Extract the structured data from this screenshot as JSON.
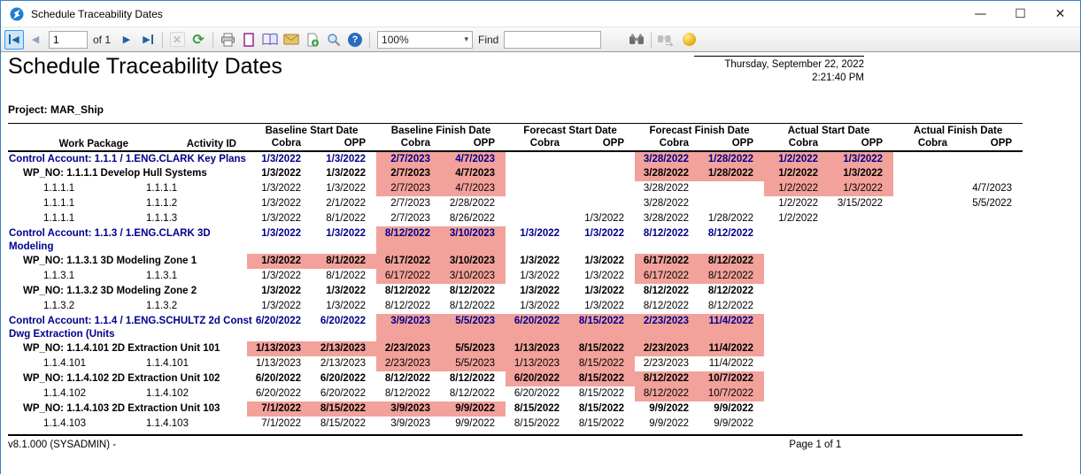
{
  "window": {
    "title": "Schedule Traceability Dates",
    "controls": {
      "minimize": "—",
      "maximize": "☐",
      "close": "✕"
    }
  },
  "toolbar": {
    "page_value": "1",
    "of_label": "of 1",
    "zoom_value": "100%",
    "find_label": "Find",
    "icons": [
      "first-page-icon",
      "prev-page-icon",
      "next-page-icon",
      "last-page-icon",
      "cancel-icon",
      "refresh-icon",
      "print-icon",
      "page-setup-icon",
      "page-layout-icon",
      "email-icon",
      "export-icon",
      "magnifier-icon",
      "help-icon",
      "binoculars-icon",
      "find-next-icon",
      "gold-ball-icon"
    ]
  },
  "report": {
    "title": "Schedule Traceability Dates",
    "date_line1": "Thursday, September 22, 2022",
    "date_line2": "2:21:40 PM",
    "project_label": "Project: MAR_Ship",
    "footer_left": "v8.1.000 (SYSADMIN) -",
    "footer_page": "Page 1 of 1"
  },
  "colors": {
    "highlight": "#f2a29b",
    "control_account_text": "#00008c",
    "window_border": "#3e7fc1"
  },
  "table": {
    "col1_header": "Work Package",
    "col2_header": "Activity ID",
    "groups": [
      "Baseline Start Date",
      "Baseline Finish Date",
      "Forecast Start Date",
      "Forecast Finish Date",
      "Actual Start Date",
      "Actual Finish Date"
    ],
    "sub_left": "Cobra",
    "sub_right": "OPP",
    "rows": [
      {
        "style": "ca",
        "wp": "Control Account: 1.1.1 / 1.ENG.CLARK Key Plans",
        "id": "",
        "dates": [
          "1/3/2022",
          "1/3/2022",
          "2/7/2023",
          "4/7/2023",
          "",
          "",
          "3/28/2022",
          "1/28/2022",
          "1/2/2022",
          "1/3/2022",
          "",
          ""
        ],
        "hl": [
          2,
          3,
          6,
          7,
          8,
          9
        ]
      },
      {
        "style": "wp",
        "wp": "WP_NO: 1.1.1.1 Develop Hull Systems",
        "id": "",
        "dates": [
          "1/3/2022",
          "1/3/2022",
          "2/7/2023",
          "4/7/2023",
          "",
          "",
          "3/28/2022",
          "1/28/2022",
          "1/2/2022",
          "1/3/2022",
          "",
          ""
        ],
        "hl": [
          2,
          3,
          6,
          7,
          8,
          9
        ]
      },
      {
        "style": "act",
        "wp": "1.1.1.1",
        "id": "1.1.1.1",
        "dates": [
          "1/3/2022",
          "1/3/2022",
          "2/7/2023",
          "4/7/2023",
          "",
          "",
          "3/28/2022",
          "",
          "1/2/2022",
          "1/3/2022",
          "",
          "4/7/2023"
        ],
        "hl": [
          2,
          3,
          8,
          9
        ]
      },
      {
        "style": "act",
        "wp": "1.1.1.1",
        "id": "1.1.1.2",
        "dates": [
          "1/3/2022",
          "2/1/2022",
          "2/7/2023",
          "2/28/2022",
          "",
          "",
          "3/28/2022",
          "",
          "1/2/2022",
          "3/15/2022",
          "",
          "5/5/2022"
        ],
        "hl": []
      },
      {
        "style": "act",
        "wp": "1.1.1.1",
        "id": "1.1.1.3",
        "dates": [
          "1/3/2022",
          "8/1/2022",
          "2/7/2023",
          "8/26/2022",
          "",
          "1/3/2022",
          "3/28/2022",
          "1/28/2022",
          "1/2/2022",
          "",
          "",
          ""
        ],
        "hl": []
      },
      {
        "style": "ca",
        "wp": "Control Account: 1.1.3 / 1.ENG.CLARK 3D Modeling",
        "id": "",
        "dates": [
          "1/3/2022",
          "1/3/2022",
          "8/12/2022",
          "3/10/2023",
          "1/3/2022",
          "1/3/2022",
          "8/12/2022",
          "8/12/2022",
          "",
          "",
          "",
          ""
        ],
        "hl": [
          2,
          3
        ]
      },
      {
        "style": "wp",
        "wp": "WP_NO: 1.1.3.1 3D Modeling Zone 1",
        "id": "",
        "dates": [
          "1/3/2022",
          "8/1/2022",
          "6/17/2022",
          "3/10/2023",
          "1/3/2022",
          "1/3/2022",
          "6/17/2022",
          "8/12/2022",
          "",
          "",
          "",
          ""
        ],
        "hl": [
          0,
          1,
          2,
          3,
          6,
          7
        ]
      },
      {
        "style": "act",
        "wp": "1.1.3.1",
        "id": "1.1.3.1",
        "dates": [
          "1/3/2022",
          "8/1/2022",
          "6/17/2022",
          "3/10/2023",
          "1/3/2022",
          "1/3/2022",
          "6/17/2022",
          "8/12/2022",
          "",
          "",
          "",
          ""
        ],
        "hl": [
          2,
          3,
          6,
          7
        ]
      },
      {
        "style": "wp",
        "wp": "WP_NO: 1.1.3.2 3D Modeling Zone 2",
        "id": "",
        "dates": [
          "1/3/2022",
          "1/3/2022",
          "8/12/2022",
          "8/12/2022",
          "1/3/2022",
          "1/3/2022",
          "8/12/2022",
          "8/12/2022",
          "",
          "",
          "",
          ""
        ],
        "hl": []
      },
      {
        "style": "act",
        "wp": "1.1.3.2",
        "id": "1.1.3.2",
        "dates": [
          "1/3/2022",
          "1/3/2022",
          "8/12/2022",
          "8/12/2022",
          "1/3/2022",
          "1/3/2022",
          "8/12/2022",
          "8/12/2022",
          "",
          "",
          "",
          ""
        ],
        "hl": []
      },
      {
        "style": "ca",
        "wp": "Control Account: 1.1.4 / 1.ENG.SCHULTZ 2d Const Dwg Extraction (Units",
        "id": "",
        "dates": [
          "6/20/2022",
          "6/20/2022",
          "3/9/2023",
          "5/5/2023",
          "6/20/2022",
          "8/15/2022",
          "2/23/2023",
          "11/4/2022",
          "",
          "",
          "",
          ""
        ],
        "hl": [
          2,
          3,
          4,
          5,
          6,
          7
        ]
      },
      {
        "style": "wp",
        "wp": "WP_NO: 1.1.4.101 2D Extraction Unit 101",
        "id": "",
        "dates": [
          "1/13/2023",
          "2/13/2023",
          "2/23/2023",
          "5/5/2023",
          "1/13/2023",
          "8/15/2022",
          "2/23/2023",
          "11/4/2022",
          "",
          "",
          "",
          ""
        ],
        "hl": [
          0,
          1,
          2,
          3,
          4,
          5,
          6,
          7
        ]
      },
      {
        "style": "act",
        "wp": "1.1.4.101",
        "id": "1.1.4.101",
        "dates": [
          "1/13/2023",
          "2/13/2023",
          "2/23/2023",
          "5/5/2023",
          "1/13/2023",
          "8/15/2022",
          "2/23/2023",
          "11/4/2022",
          "",
          "",
          "",
          ""
        ],
        "hl": [
          2,
          3,
          4,
          5
        ]
      },
      {
        "style": "wp",
        "wp": "WP_NO: 1.1.4.102 2D Extraction Unit 102",
        "id": "",
        "dates": [
          "6/20/2022",
          "6/20/2022",
          "8/12/2022",
          "8/12/2022",
          "6/20/2022",
          "8/15/2022",
          "8/12/2022",
          "10/7/2022",
          "",
          "",
          "",
          ""
        ],
        "hl": [
          4,
          5,
          6,
          7
        ]
      },
      {
        "style": "act",
        "wp": "1.1.4.102",
        "id": "1.1.4.102",
        "dates": [
          "6/20/2022",
          "6/20/2022",
          "8/12/2022",
          "8/12/2022",
          "6/20/2022",
          "8/15/2022",
          "8/12/2022",
          "10/7/2022",
          "",
          "",
          "",
          ""
        ],
        "hl": [
          6,
          7
        ]
      },
      {
        "style": "wp",
        "wp": "WP_NO: 1.1.4.103 2D Extraction Unit 103",
        "id": "",
        "dates": [
          "7/1/2022",
          "8/15/2022",
          "3/9/2023",
          "9/9/2022",
          "8/15/2022",
          "8/15/2022",
          "9/9/2022",
          "9/9/2022",
          "",
          "",
          "",
          ""
        ],
        "hl": [
          0,
          1,
          2,
          3
        ]
      },
      {
        "style": "act",
        "wp": "1.1.4.103",
        "id": "1.1.4.103",
        "dates": [
          "7/1/2022",
          "8/15/2022",
          "3/9/2023",
          "9/9/2022",
          "8/15/2022",
          "8/15/2022",
          "9/9/2022",
          "9/9/2022",
          "",
          "",
          "",
          ""
        ],
        "hl": []
      }
    ]
  }
}
